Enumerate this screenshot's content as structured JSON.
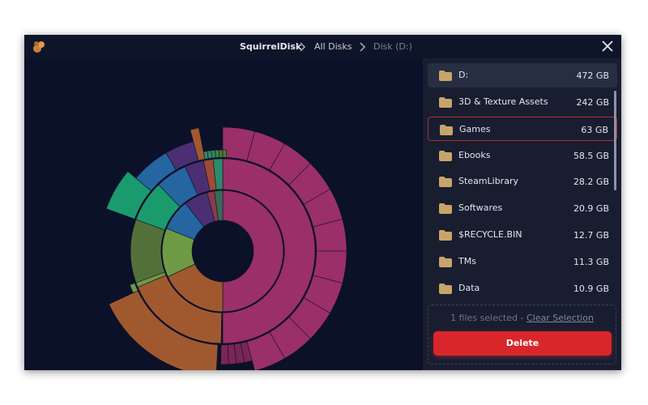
{
  "header": {
    "app": "SquirrelDisk",
    "crumbs": [
      "All Disks",
      "Disk (D:)"
    ]
  },
  "drive": {
    "name": "D:",
    "size": "472 GB"
  },
  "folders": [
    {
      "name": "3D & Texture Assets",
      "size": "242 GB"
    },
    {
      "name": "Games",
      "size": "63 GB",
      "selected": true
    },
    {
      "name": "Ebooks",
      "size": "58.5 GB"
    },
    {
      "name": "SteamLibrary",
      "size": "28.2 GB"
    },
    {
      "name": "Softwares",
      "size": "20.9 GB"
    },
    {
      "name": "$RECYCLE.BIN",
      "size": "12.7 GB"
    },
    {
      "name": "TMs",
      "size": "11.3 GB"
    },
    {
      "name": "Data",
      "size": "10.9 GB"
    }
  ],
  "selection": {
    "status": "1 files selected -",
    "action": "Clear Selection"
  },
  "delete_button": "Delete"
}
